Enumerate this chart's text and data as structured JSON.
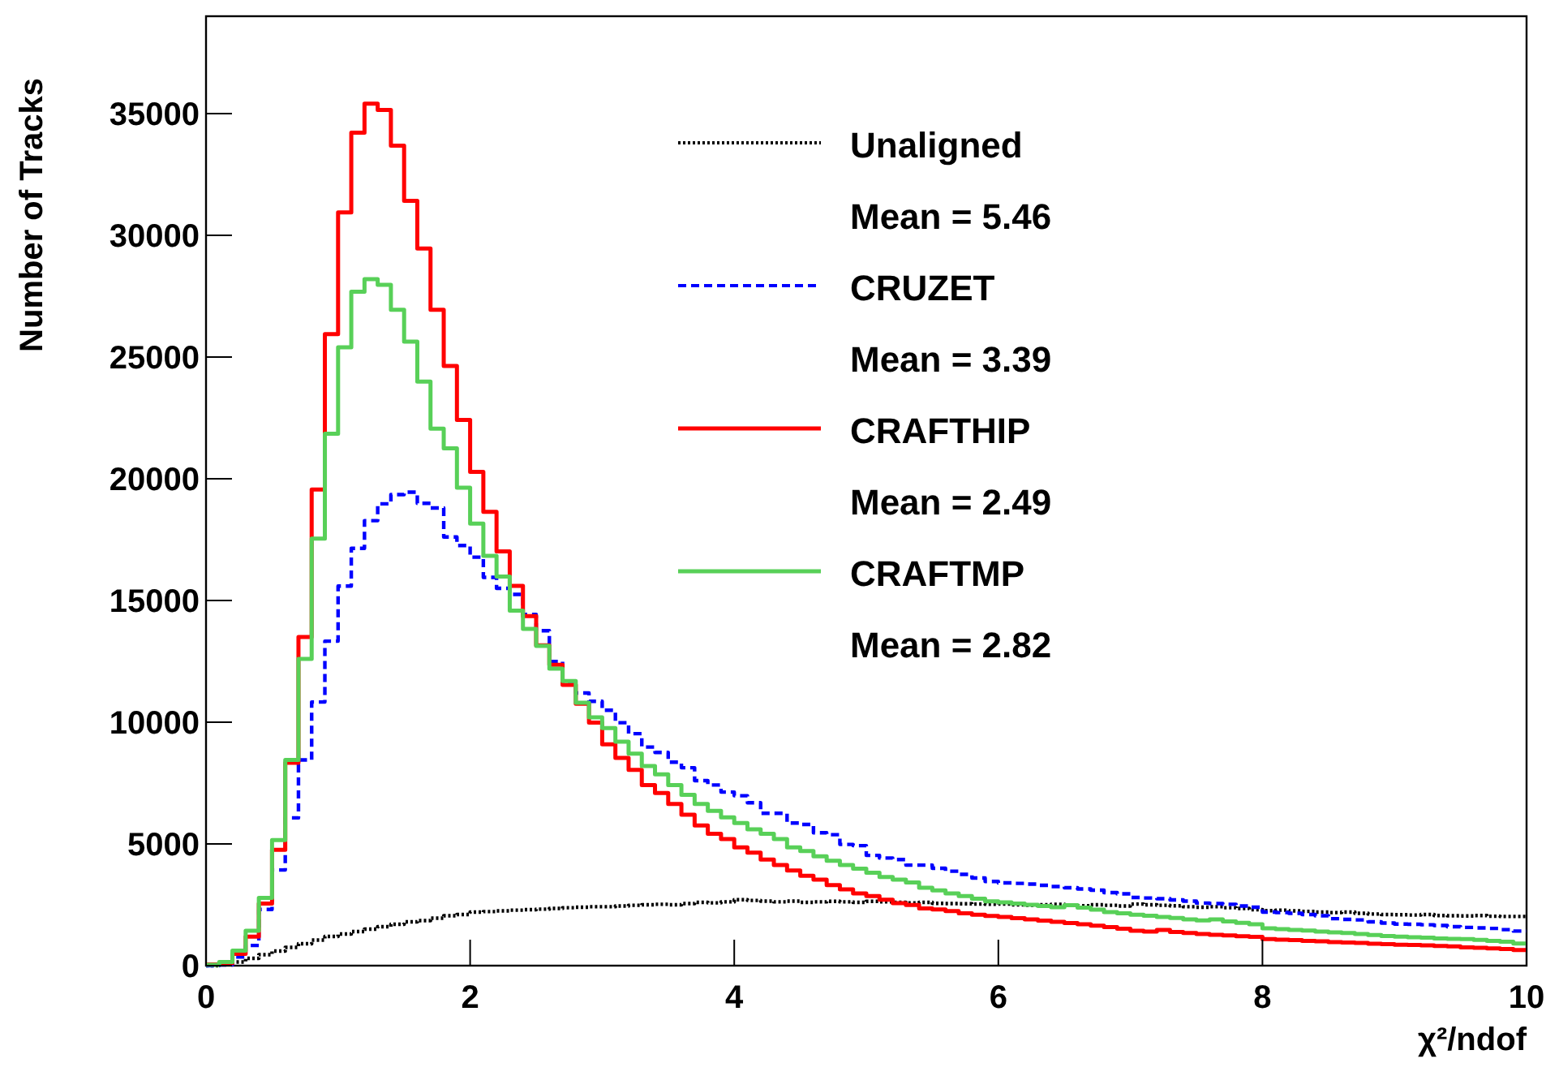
{
  "chart_data": {
    "type": "histogram",
    "xlabel": "χ²/ndof",
    "ylabel": "Number of Tracks",
    "bins": [
      0,
      0.1,
      0.2,
      0.3,
      0.4,
      0.5,
      0.6,
      0.7,
      0.8,
      0.9,
      1,
      1.1,
      1.2,
      1.3,
      1.4,
      1.5,
      1.6,
      1.7,
      1.8,
      1.9,
      2,
      2.1,
      2.2,
      2.3,
      2.4,
      2.5,
      2.6,
      2.7,
      2.8,
      2.9,
      3,
      3.1,
      3.2,
      3.3,
      3.4,
      3.5,
      3.6,
      3.7,
      3.8,
      3.9,
      4,
      4.1,
      4.2,
      4.3,
      4.4,
      4.5,
      4.6,
      4.7,
      4.8,
      4.9,
      5,
      5.1,
      5.2,
      5.3,
      5.4,
      5.5,
      5.6,
      5.7,
      5.8,
      5.9,
      6,
      6.1,
      6.2,
      6.3,
      6.4,
      6.5,
      6.6,
      6.7,
      6.8,
      6.9,
      7,
      7.1,
      7.2,
      7.3,
      7.4,
      7.5,
      7.6,
      7.7,
      7.8,
      7.9,
      8,
      8.1,
      8.2,
      8.3,
      8.4,
      8.5,
      8.6,
      8.7,
      8.8,
      8.9,
      9,
      9.1,
      9.2,
      9.3,
      9.4,
      9.5,
      9.6,
      9.7,
      9.8,
      9.9,
      10
    ],
    "xlim": [
      0,
      10
    ],
    "xticks": [
      0,
      2,
      4,
      6,
      8,
      10
    ],
    "ylim": [
      0,
      39000
    ],
    "yticks": [
      0,
      5000,
      10000,
      15000,
      20000,
      25000,
      30000,
      35000
    ],
    "grid": false,
    "legend": "top right",
    "annotations": [
      "Mean = 5.46",
      "Mean = 3.39",
      "Mean = 2.49",
      "Mean = 2.82"
    ],
    "series": [
      {
        "name": "Unaligned",
        "color": "#000000",
        "line_style": "dotted",
        "values": [
          0,
          40,
          150,
          300,
          450,
          600,
          750,
          900,
          1050,
          1200,
          1300,
          1400,
          1500,
          1600,
          1700,
          1800,
          1850,
          1950,
          2050,
          2100,
          2200,
          2220,
          2250,
          2280,
          2300,
          2320,
          2350,
          2380,
          2400,
          2420,
          2420,
          2450,
          2480,
          2500,
          2520,
          2500,
          2550,
          2600,
          2580,
          2620,
          2710,
          2680,
          2650,
          2620,
          2650,
          2600,
          2620,
          2640,
          2620,
          2600,
          2640,
          2620,
          2600,
          2580,
          2600,
          2560,
          2550,
          2540,
          2530,
          2520,
          2530,
          2500,
          2480,
          2500,
          2520,
          2480,
          2460,
          2500,
          2480,
          2450,
          2530,
          2500,
          2480,
          2460,
          2420,
          2400,
          2420,
          2380,
          2350,
          2300,
          2260,
          2280,
          2250,
          2230,
          2200,
          2180,
          2200,
          2150,
          2120,
          2100,
          2090,
          2080,
          2100,
          2060,
          2050,
          2040,
          2060,
          2030,
          2020,
          2020
        ]
      },
      {
        "name": "CRUZET",
        "color": "#0000ff",
        "line_style": "dashed",
        "values": [
          0,
          30,
          360,
          830,
          2310,
          3930,
          6070,
          8450,
          10830,
          13330,
          15590,
          17140,
          18280,
          18970,
          19350,
          19450,
          18990,
          18800,
          17610,
          17260,
          16780,
          15950,
          15500,
          15250,
          14430,
          13760,
          12490,
          11640,
          11200,
          10860,
          10490,
          9980,
          9530,
          8980,
          8760,
          8360,
          8130,
          7600,
          7420,
          7130,
          6980,
          6690,
          6260,
          6260,
          5860,
          5800,
          5460,
          5380,
          4980,
          4930,
          4530,
          4420,
          4360,
          4130,
          4130,
          4000,
          3880,
          3750,
          3600,
          3460,
          3400,
          3380,
          3350,
          3300,
          3250,
          3200,
          3150,
          3100,
          3000,
          2950,
          2800,
          2780,
          2750,
          2700,
          2650,
          2570,
          2550,
          2520,
          2450,
          2400,
          2200,
          2180,
          2150,
          2100,
          2050,
          1930,
          1900,
          1880,
          1800,
          1750,
          1710,
          1700,
          1680,
          1650,
          1600,
          1570,
          1550,
          1530,
          1480,
          1420
        ]
      },
      {
        "name": "CRAFTHIP",
        "color": "#ff0000",
        "line_style": "solid",
        "values": [
          50,
          100,
          480,
          1190,
          2550,
          4760,
          8330,
          13500,
          19560,
          25940,
          30940,
          34220,
          35410,
          35150,
          33680,
          31420,
          29460,
          26940,
          24630,
          22420,
          20280,
          18640,
          17020,
          15600,
          14360,
          13160,
          12360,
          11530,
          10760,
          9980,
          9090,
          8530,
          8040,
          7420,
          7090,
          6640,
          6200,
          5760,
          5420,
          5200,
          4860,
          4640,
          4360,
          4130,
          3910,
          3690,
          3530,
          3310,
          3130,
          2970,
          2860,
          2710,
          2570,
          2490,
          2350,
          2310,
          2240,
          2150,
          2090,
          2040,
          2000,
          1950,
          1900,
          1850,
          1800,
          1750,
          1700,
          1640,
          1580,
          1520,
          1430,
          1400,
          1470,
          1380,
          1340,
          1300,
          1270,
          1240,
          1210,
          1180,
          1090,
          1070,
          1050,
          1020,
          1000,
          970,
          950,
          930,
          900,
          880,
          860,
          850,
          830,
          810,
          790,
          750,
          730,
          710,
          680,
          640
        ]
      },
      {
        "name": "CRAFTMP",
        "color": "#58d058",
        "line_style": "solid",
        "values": [
          30,
          150,
          620,
          1430,
          2780,
          5160,
          8450,
          12600,
          17540,
          21850,
          25400,
          27680,
          28200,
          27970,
          26940,
          25630,
          23990,
          22060,
          21250,
          19630,
          18160,
          16830,
          15980,
          14580,
          13830,
          13130,
          12200,
          11690,
          10800,
          10200,
          9760,
          9200,
          8710,
          8200,
          7860,
          7420,
          7020,
          6640,
          6360,
          6090,
          5860,
          5600,
          5420,
          5200,
          4860,
          4710,
          4490,
          4310,
          4130,
          3980,
          3820,
          3640,
          3530,
          3420,
          3200,
          3090,
          2970,
          2860,
          2750,
          2640,
          2600,
          2550,
          2500,
          2450,
          2400,
          2480,
          2380,
          2300,
          2200,
          2150,
          2090,
          2050,
          2000,
          1960,
          1900,
          1860,
          1900,
          1820,
          1760,
          1700,
          1530,
          1500,
          1470,
          1440,
          1400,
          1370,
          1340,
          1300,
          1260,
          1220,
          1190,
          1170,
          1150,
          1120,
          1100,
          1090,
          1060,
          1020,
          980,
          910
        ]
      }
    ]
  }
}
